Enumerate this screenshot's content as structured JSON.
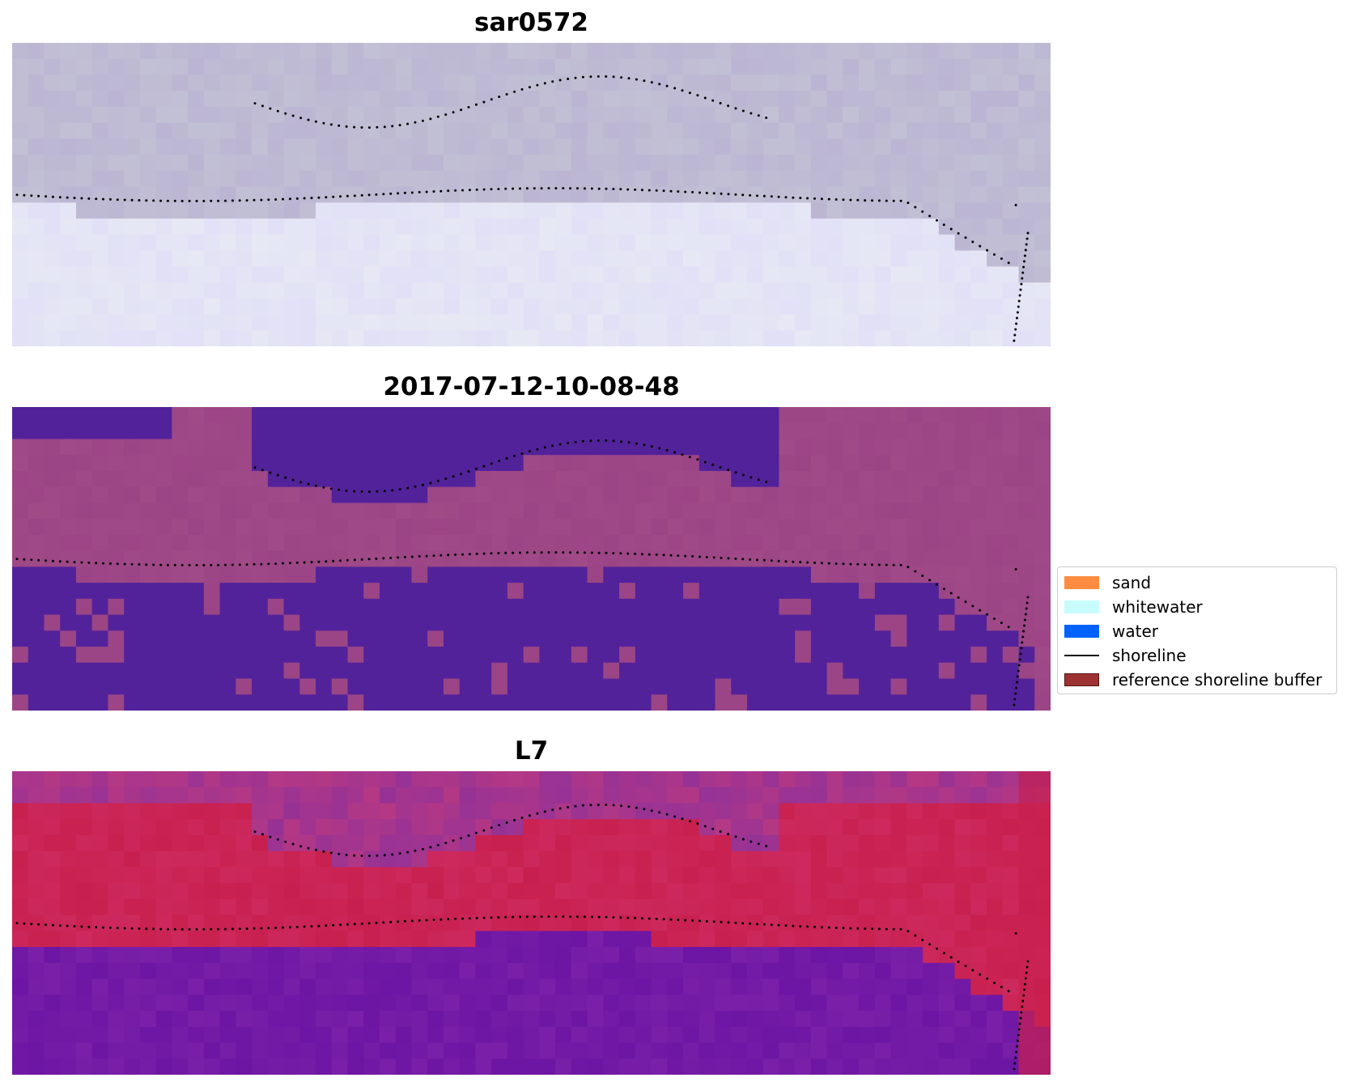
{
  "panels": [
    {
      "id": "sar",
      "title": "sar0572"
    },
    {
      "id": "classified",
      "title": "2017-07-12-10-08-48"
    },
    {
      "id": "l7",
      "title": "L7"
    }
  ],
  "legend": {
    "items": [
      {
        "label": "sand",
        "color": "#ff8c40",
        "kind": "patch"
      },
      {
        "label": "whitewater",
        "color": "#c8fcfc",
        "kind": "patch"
      },
      {
        "label": "water",
        "color": "#0062ff",
        "kind": "patch"
      },
      {
        "label": "shoreline",
        "color": "#000000",
        "kind": "line"
      },
      {
        "label": "reference shoreline buffer",
        "color": "#9e3232",
        "kind": "patch"
      }
    ]
  },
  "colors": {
    "sar_land": "#c2c0d4",
    "sar_water": "#e6e8f4",
    "class_water": "#52229a",
    "class_land": "#a04a88",
    "l7_water": "#7a20a8",
    "l7_land": "#c8204e"
  }
}
